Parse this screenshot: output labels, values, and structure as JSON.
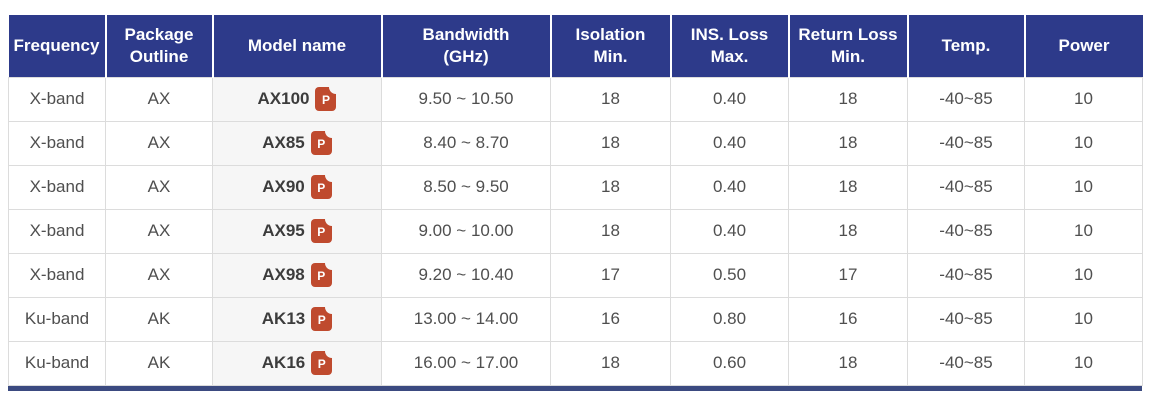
{
  "colors": {
    "header_bg": "#2d3a8a",
    "header_text": "#ffffff",
    "body_text": "#4f4f4f",
    "model_column_bg": "#f6f6f6",
    "cell_border": "#dcdcdc",
    "pdf_icon_bg": "#bf4a2e",
    "bottom_bar": "#3b4a80"
  },
  "table": {
    "pdf_icon_glyph": "P",
    "headers": {
      "frequency": "Frequency",
      "package": "Package\nOutline",
      "model": "Model name",
      "bandwidth": "Bandwidth\n(GHz)",
      "isolation": "Isolation\nMin.",
      "ins_loss": "INS. Loss\nMax.",
      "return_loss": "Return Loss\nMin.",
      "temp": "Temp.",
      "power": "Power"
    },
    "rows": [
      {
        "frequency": "X-band",
        "package": "AX",
        "model": "AX100",
        "bandwidth": "9.50 ~ 10.50",
        "isolation": "18",
        "ins_loss": "0.40",
        "return_loss": "18",
        "temp": "-40~85",
        "power": "10"
      },
      {
        "frequency": "X-band",
        "package": "AX",
        "model": "AX85",
        "bandwidth": "8.40 ~ 8.70",
        "isolation": "18",
        "ins_loss": "0.40",
        "return_loss": "18",
        "temp": "-40~85",
        "power": "10"
      },
      {
        "frequency": "X-band",
        "package": "AX",
        "model": "AX90",
        "bandwidth": "8.50 ~ 9.50",
        "isolation": "18",
        "ins_loss": "0.40",
        "return_loss": "18",
        "temp": "-40~85",
        "power": "10"
      },
      {
        "frequency": "X-band",
        "package": "AX",
        "model": "AX95",
        "bandwidth": "9.00 ~ 10.00",
        "isolation": "18",
        "ins_loss": "0.40",
        "return_loss": "18",
        "temp": "-40~85",
        "power": "10"
      },
      {
        "frequency": "X-band",
        "package": "AX",
        "model": "AX98",
        "bandwidth": "9.20 ~ 10.40",
        "isolation": "17",
        "ins_loss": "0.50",
        "return_loss": "17",
        "temp": "-40~85",
        "power": "10"
      },
      {
        "frequency": "Ku-band",
        "package": "AK",
        "model": "AK13",
        "bandwidth": "13.00 ~ 14.00",
        "isolation": "16",
        "ins_loss": "0.80",
        "return_loss": "16",
        "temp": "-40~85",
        "power": "10"
      },
      {
        "frequency": "Ku-band",
        "package": "AK",
        "model": "AK16",
        "bandwidth": "16.00 ~ 17.00",
        "isolation": "18",
        "ins_loss": "0.60",
        "return_loss": "18",
        "temp": "-40~85",
        "power": "10"
      }
    ]
  }
}
